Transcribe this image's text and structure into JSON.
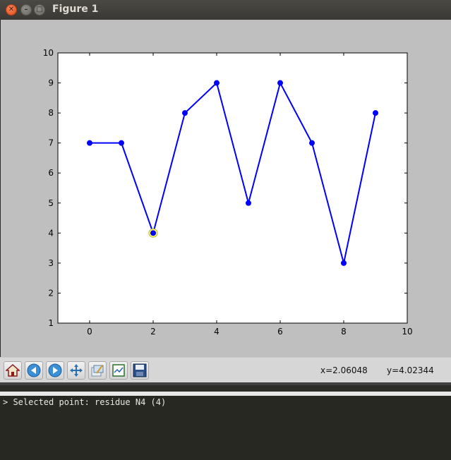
{
  "window": {
    "title": "Figure 1"
  },
  "chart_data": {
    "type": "line",
    "x": [
      0,
      1,
      2,
      3,
      4,
      5,
      6,
      7,
      8,
      9
    ],
    "series": [
      {
        "values": [
          7,
          7,
          4,
          8,
          9,
          5,
          9,
          7,
          3,
          8
        ],
        "color": "#0000ff"
      }
    ],
    "xlim": [
      -1,
      10
    ],
    "ylim": [
      1,
      10
    ],
    "xticks": [
      0,
      2,
      4,
      6,
      8,
      10
    ],
    "yticks": [
      1,
      2,
      3,
      4,
      5,
      6,
      7,
      8,
      9,
      10
    ],
    "highlighted_point": {
      "x": 2,
      "y": 4,
      "color": "#ffff66"
    },
    "marker": "o",
    "grid": false,
    "title": "",
    "xlabel": "",
    "ylabel": ""
  },
  "toolbar": {
    "buttons": [
      "home-icon",
      "back-icon",
      "forward-icon",
      "pan-icon",
      "subplots-icon",
      "zoom-rect-icon",
      "save-icon"
    ],
    "x_readout": "x=2.06048",
    "y_readout": "y=4.02344"
  },
  "terminal": {
    "line": "> Selected point: residue N4 (4)"
  },
  "colors": {
    "figure_bg": "#bfbfbf",
    "line": "#0000ff",
    "terminal_bg": "#272822"
  }
}
